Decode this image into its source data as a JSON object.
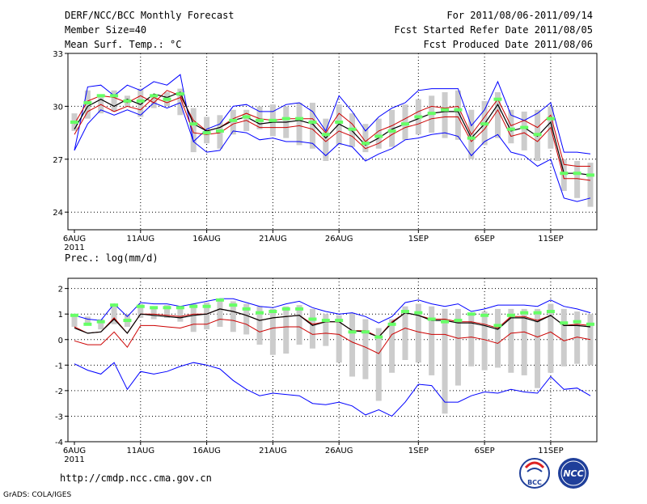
{
  "header": {
    "title": "DERF/NCC/BCC Monthly Forecast",
    "member_size": "Member Size=40",
    "variable": "Mean Surf. Temp.: °C",
    "period": "For 2011/08/06-2011/09/14",
    "fcst_started": "Fcst Started Refer Date 2011/08/05",
    "fcst_produced": "Fcst Produced Date 2011/08/06"
  },
  "footer": {
    "url": "http://cmdp.ncc.cma.gov.cn",
    "grads": "GrADS: COLA/IGES",
    "logo_bcc": "BCC",
    "logo_ncc": "NCC"
  },
  "colors": {
    "max_line": "#0000ff",
    "min_line": "#0000ff",
    "upper_line": "#cc0000",
    "mean_line": "#000000",
    "lower_line": "#cc0000",
    "median_mark": "#00cc33",
    "obs_mark": "#66ff66",
    "box": "#cccccc"
  },
  "chart_data": [
    {
      "type": "line",
      "title": "Mean Surf. Temp.: °C",
      "x_tick_labels": [
        "6AUG",
        "11AUG",
        "16AUG",
        "21AUG",
        "26AUG",
        "1SEP",
        "6SEP",
        "11SEP"
      ],
      "x_tick_days": [
        0,
        5,
        10,
        15,
        20,
        26,
        31,
        36
      ],
      "year_label": "2011",
      "y_tick_labels": [
        "24",
        "27",
        "30",
        "33"
      ],
      "ylim": [
        23,
        33
      ],
      "series": [
        {
          "name": "max",
          "values": [
            27.5,
            31.1,
            31.2,
            30.6,
            31.2,
            30.9,
            31.4,
            31.2,
            31.8,
            28.0,
            28.7,
            29.0,
            30.0,
            30.1,
            29.7,
            29.7,
            30.1,
            30.2,
            29.7,
            28.6,
            30.6,
            29.7,
            28.6,
            29.4,
            29.9,
            30.2,
            30.9,
            31.0,
            31.0,
            31.0,
            28.9,
            29.8,
            31.4,
            29.5,
            29.2,
            29.6,
            30.2,
            27.4,
            27.4,
            27.3
          ]
        },
        {
          "name": "upper",
          "values": [
            29.0,
            30.3,
            30.6,
            30.5,
            30.2,
            30.6,
            30.2,
            30.9,
            30.6,
            29.2,
            28.6,
            28.8,
            29.3,
            29.6,
            29.3,
            29.2,
            29.3,
            29.3,
            29.3,
            28.5,
            29.6,
            29.0,
            28.0,
            28.6,
            28.9,
            29.3,
            29.7,
            30.0,
            29.9,
            30.0,
            28.4,
            29.4,
            30.4,
            28.9,
            29.2,
            28.8,
            29.5,
            26.7,
            26.6,
            26.6
          ]
        },
        {
          "name": "mean",
          "values": [
            28.7,
            30.0,
            30.4,
            30.0,
            30.4,
            30.1,
            30.7,
            30.5,
            30.8,
            29.0,
            28.6,
            28.8,
            29.2,
            29.4,
            29.0,
            29.1,
            29.1,
            29.2,
            29.0,
            28.2,
            29.0,
            28.6,
            27.8,
            28.2,
            28.7,
            29.0,
            29.3,
            29.6,
            29.7,
            29.7,
            28.2,
            29.0,
            30.1,
            28.6,
            28.8,
            28.3,
            29.1,
            26.2,
            26.2,
            26.1
          ]
        },
        {
          "name": "lower",
          "values": [
            28.4,
            29.7,
            30.1,
            29.7,
            30.0,
            29.8,
            30.5,
            30.2,
            30.5,
            28.5,
            28.4,
            28.5,
            29.0,
            29.2,
            28.8,
            28.8,
            28.8,
            28.9,
            28.7,
            28.0,
            28.6,
            28.3,
            27.6,
            27.9,
            28.4,
            28.8,
            29.0,
            29.3,
            29.4,
            29.4,
            28.0,
            28.7,
            29.8,
            28.3,
            28.5,
            28.0,
            28.8,
            25.9,
            25.9,
            25.8
          ]
        },
        {
          "name": "min",
          "values": [
            27.5,
            29.0,
            29.8,
            29.5,
            29.8,
            29.5,
            30.2,
            29.9,
            30.2,
            28.0,
            27.4,
            27.5,
            28.6,
            28.5,
            28.1,
            28.2,
            28.0,
            28.0,
            27.9,
            27.2,
            27.9,
            27.7,
            26.9,
            27.3,
            27.6,
            28.1,
            28.2,
            28.4,
            28.5,
            28.3,
            27.2,
            28.0,
            28.4,
            27.4,
            27.2,
            26.6,
            27.0,
            24.8,
            24.6,
            24.8
          ]
        },
        {
          "name": "box_high",
          "values": [
            29.6,
            30.9,
            30.6,
            30.9,
            30.6,
            31.0,
            30.6,
            30.8,
            31.0,
            29.9,
            29.4,
            29.5,
            29.8,
            29.8,
            30.0,
            30.1,
            30.0,
            30.2,
            30.2,
            29.3,
            30.1,
            29.6,
            29.0,
            29.3,
            29.8,
            30.1,
            30.4,
            30.6,
            30.8,
            30.9,
            29.8,
            30.3,
            30.8,
            29.8,
            29.7,
            29.8,
            30.0,
            27.0,
            26.9,
            26.8
          ]
        },
        {
          "name": "box_low",
          "values": [
            28.6,
            29.3,
            29.6,
            29.7,
            30.0,
            29.4,
            29.9,
            30.0,
            29.5,
            27.4,
            27.9,
            27.6,
            28.4,
            28.6,
            28.7,
            28.3,
            28.2,
            27.8,
            27.6,
            26.9,
            27.8,
            27.7,
            27.4,
            27.6,
            27.7,
            28.1,
            28.4,
            28.5,
            28.2,
            28.1,
            27.0,
            27.8,
            28.2,
            27.9,
            27.5,
            26.9,
            27.6,
            25.2,
            24.8,
            24.3
          ]
        },
        {
          "name": "median",
          "values": [
            29.1,
            30.2,
            30.6,
            30.6,
            30.3,
            30.3,
            30.6,
            30.4,
            30.7,
            29.0,
            28.5,
            28.6,
            29.2,
            29.4,
            29.2,
            29.2,
            29.3,
            29.3,
            29.1,
            28.4,
            29.1,
            28.7,
            27.9,
            28.3,
            28.6,
            29.0,
            29.4,
            29.6,
            29.8,
            29.8,
            28.2,
            29.0,
            30.4,
            28.7,
            28.8,
            28.4,
            29.3,
            26.2,
            26.2,
            26.1
          ]
        }
      ]
    },
    {
      "type": "line",
      "title": "Prec.: log(mm/d)",
      "x_tick_labels": [
        "6AUG",
        "11AUG",
        "16AUG",
        "21AUG",
        "26AUG",
        "1SEP",
        "6SEP",
        "11SEP"
      ],
      "x_tick_days": [
        0,
        5,
        10,
        15,
        20,
        26,
        31,
        36
      ],
      "year_label": "2011",
      "y_tick_labels": [
        "-4",
        "-3",
        "-2",
        "-1",
        "0",
        "1",
        "2"
      ],
      "ylim": [
        -4,
        2.4
      ],
      "series": [
        {
          "name": "max",
          "values": [
            0.95,
            0.8,
            0.75,
            1.4,
            0.9,
            1.45,
            1.4,
            1.4,
            1.3,
            1.4,
            1.5,
            1.6,
            1.6,
            1.45,
            1.3,
            1.25,
            1.4,
            1.5,
            1.25,
            1.1,
            1.0,
            1.05,
            0.9,
            0.65,
            0.9,
            1.45,
            1.55,
            1.4,
            1.3,
            1.4,
            1.1,
            1.2,
            1.35,
            1.35,
            1.35,
            1.3,
            1.55,
            1.3,
            1.2,
            1.05
          ]
        },
        {
          "name": "upper",
          "values": [
            0.5,
            0.25,
            0.3,
            0.85,
            0.25,
            1.0,
            1.0,
            0.95,
            0.9,
            1.0,
            1.0,
            1.2,
            1.1,
            0.95,
            0.75,
            0.85,
            0.9,
            0.95,
            0.6,
            0.7,
            0.7,
            0.35,
            0.35,
            0.1,
            0.7,
            1.05,
            0.95,
            0.8,
            0.8,
            0.7,
            0.7,
            0.6,
            0.45,
            0.9,
            0.9,
            0.75,
            0.95,
            0.55,
            0.6,
            0.55
          ]
        },
        {
          "name": "mean",
          "values": [
            0.45,
            0.25,
            0.3,
            0.8,
            0.25,
            1.0,
            0.95,
            0.9,
            0.85,
            0.95,
            1.0,
            1.2,
            1.1,
            0.95,
            0.75,
            0.85,
            0.9,
            0.95,
            0.55,
            0.7,
            0.7,
            0.35,
            0.3,
            0.1,
            0.65,
            1.05,
            0.95,
            0.75,
            0.75,
            0.65,
            0.65,
            0.55,
            0.4,
            0.85,
            0.85,
            0.7,
            0.95,
            0.55,
            0.55,
            0.5
          ]
        },
        {
          "name": "lower",
          "values": [
            -0.05,
            -0.2,
            -0.2,
            0.3,
            -0.3,
            0.55,
            0.55,
            0.5,
            0.45,
            0.6,
            0.6,
            0.8,
            0.75,
            0.6,
            0.3,
            0.45,
            0.5,
            0.5,
            0.2,
            0.25,
            0.2,
            -0.1,
            -0.3,
            -0.55,
            0.2,
            0.45,
            0.3,
            0.2,
            0.2,
            0.05,
            0.1,
            0.0,
            -0.15,
            0.25,
            0.3,
            0.1,
            0.3,
            -0.05,
            0.1,
            0.0
          ]
        },
        {
          "name": "min",
          "values": [
            -0.95,
            -1.2,
            -1.35,
            -0.9,
            -1.95,
            -1.25,
            -1.35,
            -1.25,
            -1.05,
            -0.9,
            -1.0,
            -1.15,
            -1.6,
            -1.95,
            -2.2,
            -2.1,
            -2.15,
            -2.2,
            -2.5,
            -2.55,
            -2.45,
            -2.6,
            -2.95,
            -2.75,
            -3.0,
            -2.45,
            -1.75,
            -1.8,
            -2.45,
            -2.45,
            -2.2,
            -2.05,
            -2.1,
            -1.95,
            -2.05,
            -2.1,
            -1.45,
            -1.95,
            -1.9,
            -2.2
          ]
        },
        {
          "name": "box_high",
          "values": [
            1.0,
            0.9,
            0.8,
            1.3,
            1.0,
            1.4,
            1.3,
            1.35,
            1.3,
            1.4,
            1.45,
            1.5,
            1.5,
            1.4,
            1.3,
            1.2,
            1.3,
            1.35,
            1.2,
            1.0,
            0.95,
            1.05,
            0.8,
            0.45,
            0.8,
            1.3,
            1.4,
            1.3,
            1.2,
            1.2,
            1.05,
            1.1,
            1.2,
            1.2,
            1.2,
            1.2,
            1.4,
            1.2,
            1.1,
            1.0
          ]
        },
        {
          "name": "box_low",
          "values": [
            0.5,
            0.55,
            0.4,
            0.6,
            0.5,
            0.85,
            0.8,
            0.85,
            0.7,
            0.3,
            0.4,
            0.5,
            0.3,
            0.2,
            -0.2,
            -0.6,
            -0.55,
            -0.2,
            -0.35,
            -0.25,
            -0.9,
            -1.45,
            -1.55,
            -2.4,
            -1.3,
            -0.8,
            -0.9,
            -1.4,
            -2.9,
            -1.8,
            -1.05,
            -1.2,
            -1.1,
            -1.3,
            -1.4,
            -1.9,
            -1.3,
            -1.05,
            -0.95,
            -1.0
          ]
        },
        {
          "name": "median",
          "values": [
            0.95,
            0.6,
            0.7,
            1.35,
            0.75,
            1.3,
            1.25,
            1.25,
            1.25,
            1.3,
            1.3,
            1.55,
            1.35,
            1.2,
            1.05,
            1.1,
            1.2,
            1.2,
            0.8,
            0.75,
            0.75,
            0.3,
            0.3,
            0.1,
            0.6,
            1.1,
            1.05,
            0.8,
            0.7,
            0.75,
            1.0,
            0.95,
            0.55,
            0.95,
            1.05,
            1.05,
            1.1,
            0.65,
            0.7,
            0.6
          ]
        }
      ]
    }
  ]
}
